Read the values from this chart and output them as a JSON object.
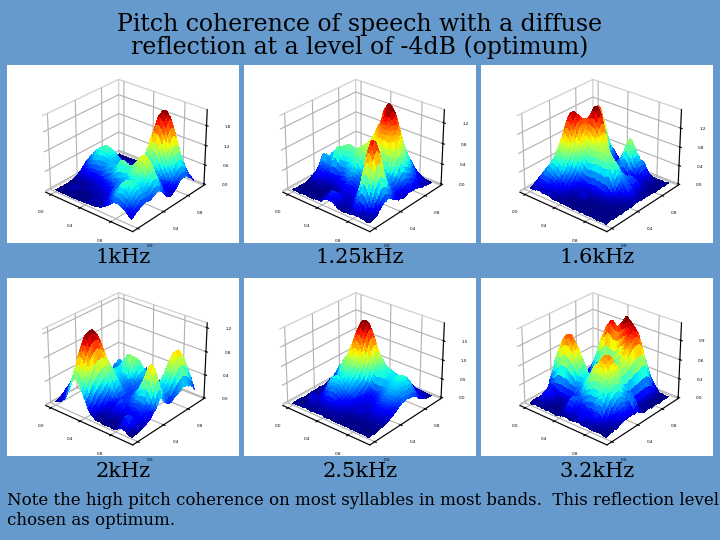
{
  "title_line1": "Pitch coherence of speech with a diffuse",
  "title_line2": "reflection at a level of -4dB (optimum)",
  "background_color": "#6699CC",
  "plot_bg_color": "#FFFFFF",
  "panel_labels": [
    "1kHz",
    "1.25kHz",
    "1.6kHz",
    "2kHz",
    "2.5kHz",
    "3.2kHz"
  ],
  "note_text": "Note the high pitch coherence on most syllables in most bands.  This reflection level is usually\nchosen as optimum.",
  "title_fontsize": 17,
  "label_fontsize": 15,
  "note_fontsize": 12,
  "text_color": "#000000",
  "background_color_hex": "#6699CC"
}
